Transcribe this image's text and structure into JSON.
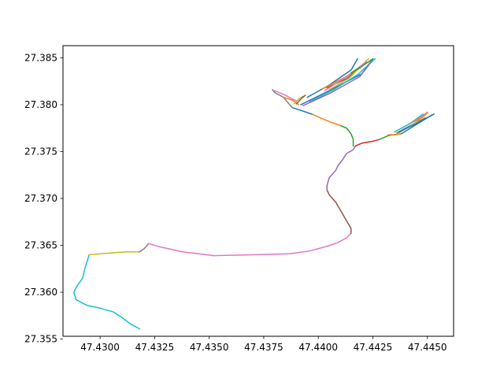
{
  "chart_data": {
    "type": "line",
    "title": "",
    "xlabel": "",
    "ylabel": "",
    "xlim": [
      47.4283,
      47.4462
    ],
    "ylim": [
      27.3553,
      27.3863
    ],
    "grid": false,
    "legend": "none",
    "x_ticks": [
      {
        "value": 47.43,
        "label": "47.4300"
      },
      {
        "value": 47.4325,
        "label": "47.4325"
      },
      {
        "value": 47.435,
        "label": "47.4350"
      },
      {
        "value": 47.4375,
        "label": "47.4375"
      },
      {
        "value": 47.44,
        "label": "47.4400"
      },
      {
        "value": 47.4425,
        "label": "47.4425"
      },
      {
        "value": 47.445,
        "label": "47.4450"
      }
    ],
    "y_ticks": [
      {
        "value": 27.355,
        "label": "27.355"
      },
      {
        "value": 27.36,
        "label": "27.360"
      },
      {
        "value": 27.365,
        "label": "27.365"
      },
      {
        "value": 27.37,
        "label": "27.370"
      },
      {
        "value": 27.375,
        "label": "27.375"
      },
      {
        "value": 27.38,
        "label": "27.380"
      },
      {
        "value": 27.385,
        "label": "27.385"
      }
    ],
    "series": [
      {
        "color": "#17becf",
        "x": [
          47.4318,
          47.4314,
          47.431,
          47.4306,
          47.43,
          47.4294,
          47.4289,
          47.4288,
          47.4289,
          47.4292,
          47.4293,
          47.4295
        ],
        "y": [
          27.3561,
          27.3566,
          27.3573,
          27.3579,
          27.3583,
          27.3586,
          27.3592,
          27.36,
          27.3605,
          27.3615,
          27.3625,
          27.364
        ]
      },
      {
        "color": "#bcbd22",
        "x": [
          47.4295,
          47.43,
          47.4306,
          47.4312,
          47.4318
        ],
        "y": [
          27.364,
          27.3641,
          27.3642,
          27.3643,
          27.3643
        ]
      },
      {
        "color": "#7f7f7f",
        "x": [
          47.4318,
          47.432,
          47.4322
        ],
        "y": [
          27.3643,
          27.3646,
          27.3651
        ]
      },
      {
        "color": "#e377c2",
        "x": [
          47.4322,
          47.4328,
          47.4338,
          47.4352,
          47.437,
          47.4387,
          47.4396,
          47.4404,
          47.4409,
          47.4413,
          47.4415
        ],
        "y": [
          27.3652,
          27.3648,
          27.3643,
          27.3639,
          27.364,
          27.3641,
          27.3644,
          27.3649,
          27.3653,
          27.3658,
          27.3663
        ]
      },
      {
        "color": "#8c564b",
        "x": [
          47.4415,
          47.4415,
          47.4413,
          47.4411,
          47.4408,
          47.4405,
          47.4404
        ],
        "y": [
          27.3663,
          27.3668,
          27.3676,
          27.3684,
          27.3696,
          27.3704,
          27.3709
        ]
      },
      {
        "color": "#9467bd",
        "x": [
          47.4404,
          47.4404,
          47.4405,
          47.4408,
          47.4409,
          47.4411,
          47.4413,
          47.4416,
          47.4417
        ],
        "y": [
          27.3709,
          27.3714,
          27.3722,
          27.373,
          27.3735,
          27.3741,
          27.3748,
          27.3752,
          27.3756
        ]
      },
      {
        "color": "#d62728",
        "x": [
          47.4417,
          47.442,
          47.4425,
          47.4428
        ],
        "y": [
          27.3756,
          27.3759,
          27.3761,
          27.3763
        ]
      },
      {
        "color": "#2ca02c",
        "x": [
          47.4416,
          47.4416,
          47.4415,
          47.4413,
          47.441
        ],
        "y": [
          27.3756,
          27.3763,
          27.3769,
          27.3775,
          27.3778
        ]
      },
      {
        "color": "#ff7f0e",
        "x": [
          47.441,
          47.4405,
          47.44,
          47.4397
        ],
        "y": [
          27.3778,
          27.3782,
          27.3787,
          27.379
        ]
      },
      {
        "color": "#1f77b4",
        "x": [
          47.4397,
          47.4392,
          47.4388
        ],
        "y": [
          27.379,
          27.3794,
          27.3797
        ]
      },
      {
        "color": "#7f7f7f",
        "x": [
          47.4388,
          47.4384,
          47.438,
          47.4379
        ],
        "y": [
          27.3797,
          27.3808,
          27.3813,
          27.3816
        ]
      },
      {
        "color": "#e377c2",
        "x": [
          47.438,
          47.4385,
          47.439
        ],
        "y": [
          27.3815,
          27.381,
          27.3804
        ]
      },
      {
        "color": "#ff7f0e",
        "x": [
          47.4384,
          47.4388,
          47.4391
        ],
        "y": [
          27.3808,
          27.3805,
          27.38
        ]
      },
      {
        "color": "#bcbd22",
        "x": [
          47.4389,
          47.4391,
          47.4393
        ],
        "y": [
          27.3801,
          27.3806,
          27.3809
        ]
      },
      {
        "color": "#8c564b",
        "x": [
          47.439,
          47.4392,
          47.4394
        ],
        "y": [
          27.3801,
          27.3806,
          27.381
        ]
      },
      {
        "color": "#1f77b4",
        "x": [
          47.4392,
          47.4405,
          47.442,
          47.4425
        ],
        "y": [
          27.38,
          27.3815,
          27.3833,
          27.3848
        ]
      },
      {
        "color": "#1f77b4",
        "x": [
          47.4395,
          47.4405,
          47.4415,
          47.4418
        ],
        "y": [
          27.3808,
          27.3821,
          27.3837,
          27.3849
        ]
      },
      {
        "color": "#17becf",
        "x": [
          47.4396,
          47.4407,
          47.4418,
          47.4426
        ],
        "y": [
          27.3803,
          27.3816,
          27.3832,
          27.3849
        ]
      },
      {
        "color": "#9467bd",
        "x": [
          47.4393,
          47.4406,
          47.4419,
          47.4424
        ],
        "y": [
          27.3799,
          27.3813,
          27.383,
          27.3846
        ]
      },
      {
        "color": "#8c564b",
        "x": [
          47.4404,
          47.4413,
          47.4422
        ],
        "y": [
          27.3818,
          27.3828,
          27.3845
        ]
      },
      {
        "color": "#bcbd22",
        "x": [
          47.4405,
          47.4414,
          47.4423
        ],
        "y": [
          27.3816,
          27.3828,
          27.3849
        ]
      },
      {
        "color": "#ff7f0e",
        "x": [
          47.4402,
          47.4412,
          47.442
        ],
        "y": [
          27.3817,
          27.3829,
          27.3841
        ]
      },
      {
        "color": "#e377c2",
        "x": [
          47.4403,
          47.4413,
          47.4422
        ],
        "y": [
          27.3815,
          27.383,
          27.3846
        ]
      },
      {
        "color": "#2ca02c",
        "x": [
          47.4415,
          47.442,
          47.4425
        ],
        "y": [
          27.3834,
          27.3841,
          27.3849
        ]
      },
      {
        "color": "#2ca02c",
        "x": [
          47.4428,
          47.4432,
          47.4437
        ],
        "y": [
          27.3763,
          27.3767,
          27.3769
        ]
      },
      {
        "color": "#ff7f0e",
        "x": [
          47.4432,
          47.4435,
          47.4438
        ],
        "y": [
          27.3768,
          27.3768,
          27.3769
        ]
      },
      {
        "color": "#17becf",
        "x": [
          47.4435,
          47.4442,
          47.4448
        ],
        "y": [
          27.3771,
          27.378,
          27.379
        ]
      },
      {
        "color": "#7f7f7f",
        "x": [
          47.4436,
          47.4443,
          47.4449
        ],
        "y": [
          27.377,
          27.3779,
          27.3786
        ]
      },
      {
        "color": "#bcbd22",
        "x": [
          47.4437,
          47.4444,
          47.445
        ],
        "y": [
          27.377,
          27.378,
          27.3791
        ]
      },
      {
        "color": "#e377c2",
        "x": [
          47.4443,
          47.4447,
          47.445
        ],
        "y": [
          27.3781,
          27.3787,
          27.3792
        ]
      },
      {
        "color": "#ff7f0e",
        "x": [
          47.4444,
          47.4448,
          47.445
        ],
        "y": [
          27.3782,
          27.3787,
          27.3792
        ]
      },
      {
        "color": "#1f77b4",
        "x": [
          47.4438,
          47.4445,
          47.4452
        ],
        "y": [
          27.3769,
          27.3779,
          27.3789
        ]
      },
      {
        "color": "#1f77b4",
        "x": [
          47.4437,
          47.4445,
          47.4453
        ],
        "y": [
          27.3771,
          27.378,
          27.379
        ]
      }
    ]
  }
}
